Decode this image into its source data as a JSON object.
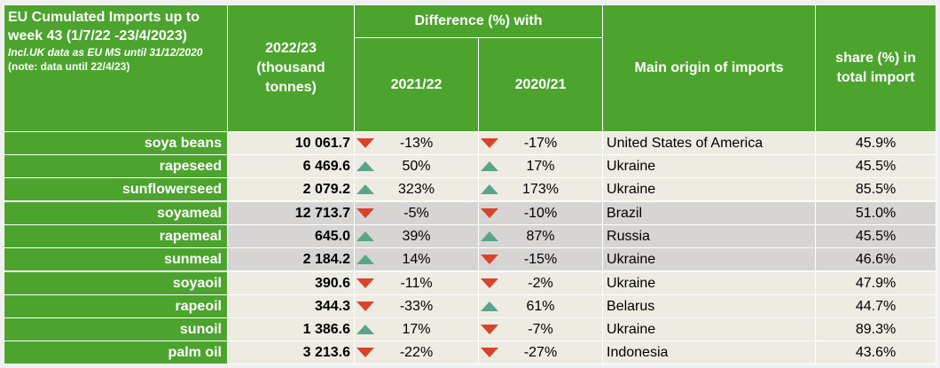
{
  "header": {
    "title": "EU Cumulated Imports up to week 43 (1/7/22 -23/4/2023)",
    "note": "Incl.UK data as EU MS until 31/12/2020",
    "note_tail": "(note: data until 22/4/23)",
    "volume_col": "2022/23 (thousand tonnes)",
    "difference_group": "Difference (%) with",
    "diff_col_1": "2021/22",
    "diff_col_2": "2020/21",
    "origin_col": "Main origin of imports",
    "share_col": "share (%) in total import"
  },
  "colors": {
    "header_green": "#4ca42e",
    "row_beige": "#eeebe3",
    "row_grey": "#d6d5d4",
    "down_arrow": "#d9432a",
    "up_arrow": "#5aa58a"
  },
  "rows": [
    {
      "product": "soya beans",
      "volume": "10 061.7",
      "d1_dir": "down",
      "d1": "-13%",
      "d2_dir": "down",
      "d2": "-17%",
      "origin": "United States of America",
      "share": "45.9%"
    },
    {
      "product": "rapeseed",
      "volume": "6 469.6",
      "d1_dir": "up",
      "d1": "50%",
      "d2_dir": "up",
      "d2": "17%",
      "origin": "Ukraine",
      "share": "45.5%"
    },
    {
      "product": "sunflowerseed",
      "volume": "2 079.2",
      "d1_dir": "up",
      "d1": "323%",
      "d2_dir": "up",
      "d2": "173%",
      "origin": "Ukraine",
      "share": "85.5%"
    },
    {
      "product": "soyameal",
      "volume": "12 713.7",
      "d1_dir": "down",
      "d1": "-5%",
      "d2_dir": "down",
      "d2": "-10%",
      "origin": "Brazil",
      "share": "51.0%"
    },
    {
      "product": "rapemeal",
      "volume": "645.0",
      "d1_dir": "up",
      "d1": "39%",
      "d2_dir": "up",
      "d2": "87%",
      "origin": "Russia",
      "share": "45.5%"
    },
    {
      "product": "sunmeal",
      "volume": "2 184.2",
      "d1_dir": "up",
      "d1": "14%",
      "d2_dir": "down",
      "d2": "-15%",
      "origin": "Ukraine",
      "share": "46.6%"
    },
    {
      "product": "soyaoil",
      "volume": "390.6",
      "d1_dir": "down",
      "d1": "-11%",
      "d2_dir": "down",
      "d2": "-2%",
      "origin": "Ukraine",
      "share": "47.9%"
    },
    {
      "product": "rapeoil",
      "volume": "344.3",
      "d1_dir": "down",
      "d1": "-33%",
      "d2_dir": "up",
      "d2": "61%",
      "origin": "Belarus",
      "share": "44.7%"
    },
    {
      "product": "sunoil",
      "volume": "1 386.6",
      "d1_dir": "up",
      "d1": "17%",
      "d2_dir": "down",
      "d2": "-7%",
      "origin": "Ukraine",
      "share": "89.3%"
    },
    {
      "product": "palm oil",
      "volume": "3 213.6",
      "d1_dir": "down",
      "d1": "-22%",
      "d2_dir": "down",
      "d2": "-27%",
      "origin": "Indonesia",
      "share": "43.6%"
    }
  ]
}
